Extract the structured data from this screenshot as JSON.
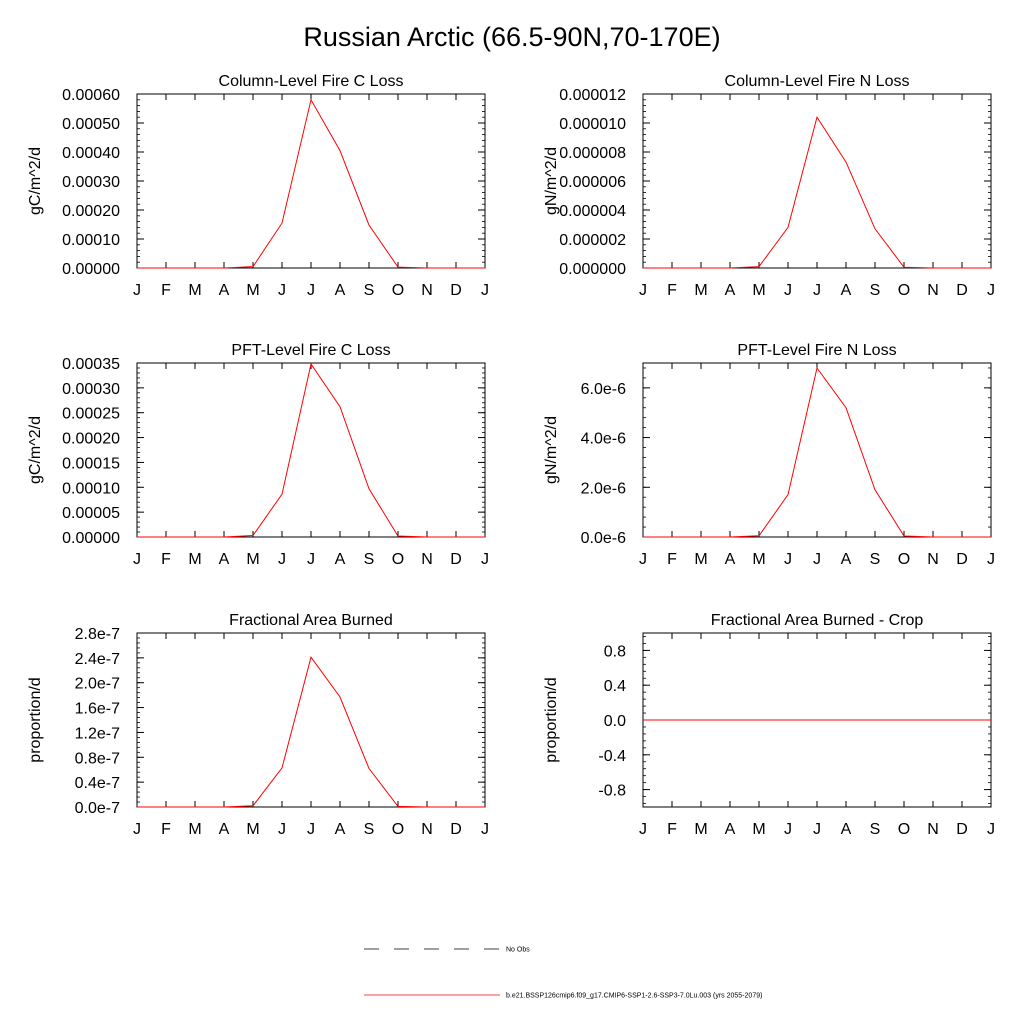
{
  "title": "Russian Arctic (66.5-90N,70-170E)",
  "months": [
    "J",
    "F",
    "M",
    "A",
    "M",
    "J",
    "J",
    "A",
    "S",
    "O",
    "N",
    "D",
    "J"
  ],
  "chart_data": [
    {
      "type": "line",
      "title": "Column-Level Fire C Loss",
      "ylabel": "gC/m^2/d",
      "ylim": [
        0,
        0.0006
      ],
      "yticks": [
        0,
        0.0001,
        0.0002,
        0.0003,
        0.0004,
        0.0005,
        0.0006
      ],
      "ytick_labels": [
        "0.00000",
        "0.00010",
        "0.00020",
        "0.00030",
        "0.00040",
        "0.00050",
        "0.00060"
      ],
      "categories": [
        "J",
        "F",
        "M",
        "A",
        "M",
        "J",
        "J",
        "A",
        "S",
        "O",
        "N",
        "D",
        "J"
      ],
      "series": [
        {
          "color": "#ff0000",
          "values": [
            0,
            0,
            0,
            0,
            5e-06,
            0.000155,
            0.00058,
            0.000405,
            0.000148,
            3e-06,
            0,
            0,
            0
          ]
        }
      ]
    },
    {
      "type": "line",
      "title": "Column-Level Fire N Loss",
      "ylabel": "gN/m^2/d",
      "ylim": [
        0,
        1.2e-05
      ],
      "yticks": [
        0,
        2e-06,
        4e-06,
        6e-06,
        8e-06,
        1e-05,
        1.2e-05
      ],
      "ytick_labels": [
        "0.000000",
        "0.000002",
        "0.000004",
        "0.000006",
        "0.000008",
        "0.000010",
        "0.000012"
      ],
      "categories": [
        "J",
        "F",
        "M",
        "A",
        "M",
        "J",
        "J",
        "A",
        "S",
        "O",
        "N",
        "D",
        "J"
      ],
      "series": [
        {
          "color": "#ff0000",
          "values": [
            0,
            0,
            0,
            0,
            1e-07,
            2.8e-06,
            1.04e-05,
            7.3e-06,
            2.7e-06,
            5e-08,
            0,
            0,
            0
          ]
        }
      ]
    },
    {
      "type": "line",
      "title": "PFT-Level Fire C Loss",
      "ylabel": "gC/m^2/d",
      "ylim": [
        0,
        0.00035
      ],
      "yticks": [
        0,
        5e-05,
        0.0001,
        0.00015,
        0.0002,
        0.00025,
        0.0003,
        0.00035
      ],
      "ytick_labels": [
        "0.00000",
        "0.00005",
        "0.00010",
        "0.00015",
        "0.00020",
        "0.00025",
        "0.00030",
        "0.00035"
      ],
      "categories": [
        "J",
        "F",
        "M",
        "A",
        "M",
        "J",
        "J",
        "A",
        "S",
        "O",
        "N",
        "D",
        "J"
      ],
      "series": [
        {
          "color": "#ff0000",
          "values": [
            0,
            0,
            0,
            0,
            3e-06,
            8.6e-05,
            0.000348,
            0.000262,
            9.7e-05,
            2e-06,
            0,
            0,
            0
          ]
        }
      ]
    },
    {
      "type": "line",
      "title": "PFT-Level Fire N Loss",
      "ylabel": "gN/m^2/d",
      "ylim": [
        0,
        7e-06
      ],
      "yticks": [
        0,
        2e-06,
        4e-06,
        6e-06
      ],
      "ytick_labels": [
        "0.0e-6",
        "2.0e-6",
        "4.0e-6",
        "6.0e-6"
      ],
      "categories": [
        "J",
        "F",
        "M",
        "A",
        "M",
        "J",
        "J",
        "A",
        "S",
        "O",
        "N",
        "D",
        "J"
      ],
      "series": [
        {
          "color": "#ff0000",
          "values": [
            0,
            0,
            0,
            0,
            5e-08,
            1.7e-06,
            6.8e-06,
            5.2e-06,
            1.9e-06,
            4e-08,
            0,
            0,
            0
          ]
        }
      ]
    },
    {
      "type": "line",
      "title": "Fractional Area Burned",
      "ylabel": "proportion/d",
      "ylim": [
        0,
        2.8e-07
      ],
      "yticks": [
        0,
        4e-08,
        8e-08,
        1.2e-07,
        1.6e-07,
        2e-07,
        2.4e-07,
        2.8e-07
      ],
      "ytick_labels": [
        "0.0e-7",
        "0.4e-7",
        "0.8e-7",
        "1.2e-7",
        "1.6e-7",
        "2.0e-7",
        "2.4e-7",
        "2.8e-7"
      ],
      "categories": [
        "J",
        "F",
        "M",
        "A",
        "M",
        "J",
        "J",
        "A",
        "S",
        "O",
        "N",
        "D",
        "J"
      ],
      "series": [
        {
          "color": "#ff0000",
          "values": [
            0,
            0,
            0,
            0,
            2e-09,
            6.3e-08,
            2.41e-07,
            1.77e-07,
            6.2e-08,
            1e-09,
            0,
            0,
            0
          ]
        }
      ]
    },
    {
      "type": "line",
      "title": "Fractional Area Burned - Crop",
      "ylabel": "proportion/d",
      "ylim": [
        -1,
        1
      ],
      "yticks": [
        -0.8,
        -0.4,
        0,
        0.4,
        0.8
      ],
      "ytick_labels": [
        "-0.8",
        "-0.4",
        "0.0",
        "0.4",
        "0.8"
      ],
      "categories": [
        "J",
        "F",
        "M",
        "A",
        "M",
        "J",
        "J",
        "A",
        "S",
        "O",
        "N",
        "D",
        "J"
      ],
      "series": [
        {
          "color": "#ff0000",
          "values": [
            0,
            0,
            0,
            0,
            0,
            0,
            0,
            0,
            0,
            0,
            0,
            0,
            0
          ]
        }
      ]
    }
  ],
  "legend": [
    {
      "label": "No Obs",
      "style": "dashed",
      "color": "#000000"
    },
    {
      "label": "b.e21.BSSP126cmip6.f09_g17.CMIP6-SSP1-2.6-SSP3-7.0Lu.003 (yrs 2055-2079)",
      "style": "solid",
      "color": "#ff0000"
    }
  ]
}
